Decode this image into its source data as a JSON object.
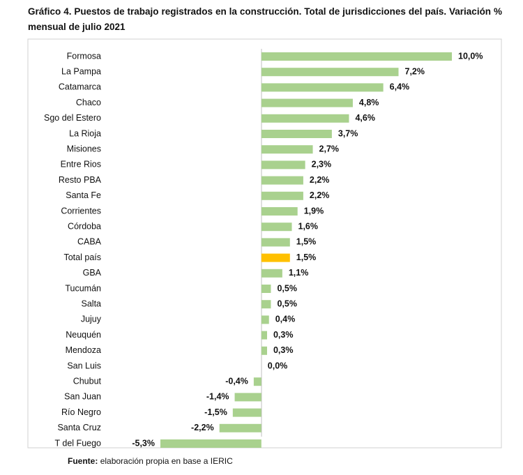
{
  "chart_data": {
    "type": "hbar",
    "title": "Gráfico 4. Puestos de trabajo registrados en la construcción. Total de jurisdicciones del país. Variación % mensual de julio 2021",
    "categories": [
      "Formosa",
      "La Pampa",
      "Catamarca",
      "Chaco",
      "Sgo del Estero",
      "La Rioja",
      "Misiones",
      "Entre Rios",
      "Resto PBA",
      "Santa Fe",
      "Corrientes",
      "Córdoba",
      "CABA",
      "Total país",
      "GBA",
      "Tucumán",
      "Salta",
      "Jujuy",
      "Neuquén",
      "Mendoza",
      "San Luis",
      "Chubut",
      "San Juan",
      "Río Negro",
      "Santa Cruz",
      "T del Fuego"
    ],
    "values": [
      10.0,
      7.2,
      6.4,
      4.8,
      4.6,
      3.7,
      2.7,
      2.3,
      2.2,
      2.2,
      1.9,
      1.6,
      1.5,
      1.5,
      1.1,
      0.5,
      0.5,
      0.4,
      0.3,
      0.3,
      0.0,
      -0.4,
      -1.4,
      -1.5,
      -2.2,
      -5.3
    ],
    "value_labels": [
      "10,0%",
      "7,2%",
      "6,4%",
      "4,8%",
      "4,6%",
      "3,7%",
      "2,7%",
      "2,3%",
      "2,2%",
      "2,2%",
      "1,9%",
      "1,6%",
      "1,5%",
      "1,5%",
      "1,1%",
      "0,5%",
      "0,5%",
      "0,4%",
      "0,3%",
      "0,3%",
      "0,0%",
      "-0,4%",
      "-1,4%",
      "-1,5%",
      "-2,2%",
      "-5,3%"
    ],
    "colors": [
      "#a9d18e",
      "#a9d18e",
      "#a9d18e",
      "#a9d18e",
      "#a9d18e",
      "#a9d18e",
      "#a9d18e",
      "#a9d18e",
      "#a9d18e",
      "#a9d18e",
      "#a9d18e",
      "#a9d18e",
      "#a9d18e",
      "#ffc000",
      "#a9d18e",
      "#a9d18e",
      "#a9d18e",
      "#a9d18e",
      "#a9d18e",
      "#a9d18e",
      "#a9d18e",
      "#a9d18e",
      "#a9d18e",
      "#a9d18e",
      "#a9d18e",
      "#a9d18e"
    ],
    "source_label": "Fuente:",
    "source_text": "elaboración propia en base a IERIC"
  }
}
